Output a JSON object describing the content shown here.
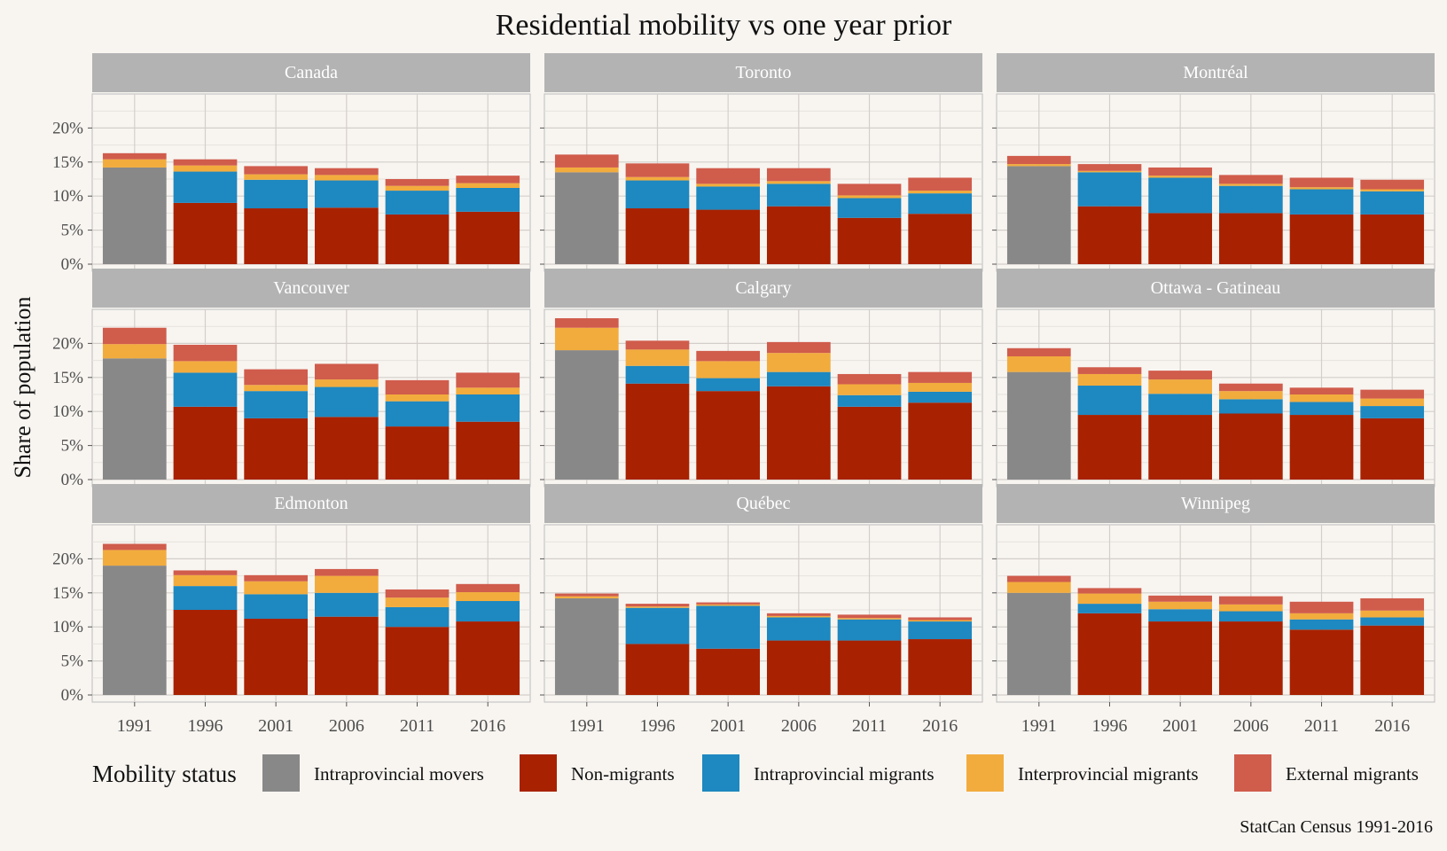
{
  "chart_data": {
    "type": "bar",
    "stacked": true,
    "title": "Residential mobility vs one year prior",
    "ylabel": "Share of population",
    "xlabel": "",
    "caption": "StatCan Census 1991-2016",
    "ylim": [
      0,
      0.25
    ],
    "yticks": [
      "0%",
      "5%",
      "10%",
      "15%",
      "20%"
    ],
    "ytick_values": [
      0,
      0.05,
      0.1,
      0.15,
      0.2
    ],
    "categories": [
      "1991",
      "1996",
      "2001",
      "2006",
      "2011",
      "2016"
    ],
    "grid": true,
    "legend": {
      "title": "Mobility status",
      "position": "bottom",
      "entries": [
        {
          "name": "Intraprovincial movers",
          "color": "#888888"
        },
        {
          "name": "Non-migrants",
          "color": "#a82100"
        },
        {
          "name": "Intraprovincial migrants",
          "color": "#1e88c0"
        },
        {
          "name": "Interprovincial migrants",
          "color": "#f2ac3d"
        },
        {
          "name": "External migrants",
          "color": "#d05c4c"
        }
      ]
    },
    "panels": [
      {
        "name": "Canada",
        "values": [
          [
            0.142,
            0,
            0,
            0.012,
            0.009
          ],
          [
            0,
            0.09,
            0.046,
            0.009,
            0.009
          ],
          [
            0,
            0.082,
            0.042,
            0.008,
            0.012
          ],
          [
            0,
            0.083,
            0.04,
            0.008,
            0.01
          ],
          [
            0,
            0.073,
            0.035,
            0.007,
            0.01
          ],
          [
            0,
            0.077,
            0.035,
            0.007,
            0.011
          ]
        ]
      },
      {
        "name": "Toronto",
        "values": [
          [
            0.135,
            0,
            0,
            0.007,
            0.019
          ],
          [
            0,
            0.082,
            0.041,
            0.005,
            0.02
          ],
          [
            0,
            0.08,
            0.034,
            0.004,
            0.023
          ],
          [
            0,
            0.085,
            0.033,
            0.004,
            0.019
          ],
          [
            0,
            0.068,
            0.029,
            0.004,
            0.017
          ],
          [
            0,
            0.074,
            0.03,
            0.004,
            0.019
          ]
        ]
      },
      {
        "name": "Montréal",
        "values": [
          [
            0.144,
            0,
            0,
            0.003,
            0.012
          ],
          [
            0,
            0.085,
            0.05,
            0.002,
            0.01
          ],
          [
            0,
            0.075,
            0.052,
            0.003,
            0.012
          ],
          [
            0,
            0.075,
            0.04,
            0.003,
            0.013
          ],
          [
            0,
            0.073,
            0.037,
            0.003,
            0.014
          ],
          [
            0,
            0.073,
            0.034,
            0.003,
            0.014
          ]
        ]
      },
      {
        "name": "Vancouver",
        "values": [
          [
            0.178,
            0,
            0,
            0.021,
            0.024
          ],
          [
            0,
            0.107,
            0.05,
            0.017,
            0.024
          ],
          [
            0,
            0.09,
            0.04,
            0.009,
            0.023
          ],
          [
            0,
            0.092,
            0.044,
            0.011,
            0.023
          ],
          [
            0,
            0.078,
            0.037,
            0.01,
            0.021
          ],
          [
            0,
            0.085,
            0.04,
            0.01,
            0.022
          ]
        ]
      },
      {
        "name": "Calgary",
        "values": [
          [
            0.19,
            0,
            0,
            0.033,
            0.014
          ],
          [
            0,
            0.141,
            0.026,
            0.024,
            0.013
          ],
          [
            0,
            0.13,
            0.019,
            0.025,
            0.015
          ],
          [
            0,
            0.137,
            0.021,
            0.028,
            0.016
          ],
          [
            0,
            0.107,
            0.017,
            0.016,
            0.015
          ],
          [
            0,
            0.113,
            0.016,
            0.013,
            0.016
          ]
        ]
      },
      {
        "name": "Ottawa - Gatineau",
        "values": [
          [
            0.158,
            0,
            0,
            0.023,
            0.012
          ],
          [
            0,
            0.095,
            0.043,
            0.017,
            0.01
          ],
          [
            0,
            0.095,
            0.031,
            0.021,
            0.013
          ],
          [
            0,
            0.097,
            0.021,
            0.012,
            0.011
          ],
          [
            0,
            0.095,
            0.019,
            0.011,
            0.01
          ],
          [
            0,
            0.09,
            0.018,
            0.011,
            0.013
          ]
        ]
      },
      {
        "name": "Edmonton",
        "values": [
          [
            0.19,
            0,
            0,
            0.023,
            0.009
          ],
          [
            0,
            0.125,
            0.035,
            0.016,
            0.007
          ],
          [
            0,
            0.112,
            0.036,
            0.019,
            0.009
          ],
          [
            0,
            0.115,
            0.035,
            0.025,
            0.01
          ],
          [
            0,
            0.1,
            0.029,
            0.014,
            0.012
          ],
          [
            0,
            0.108,
            0.03,
            0.013,
            0.012
          ]
        ]
      },
      {
        "name": "Québec",
        "values": [
          [
            0.142,
            0,
            0,
            0.003,
            0.004
          ],
          [
            0,
            0.075,
            0.053,
            0.002,
            0.004
          ],
          [
            0,
            0.068,
            0.063,
            0.002,
            0.003
          ],
          [
            0,
            0.08,
            0.034,
            0.002,
            0.004
          ],
          [
            0,
            0.08,
            0.031,
            0.002,
            0.005
          ],
          [
            0,
            0.082,
            0.026,
            0.002,
            0.004
          ]
        ]
      },
      {
        "name": "Winnipeg",
        "values": [
          [
            0.15,
            0,
            0,
            0.016,
            0.009
          ],
          [
            0,
            0.12,
            0.014,
            0.015,
            0.008
          ],
          [
            0,
            0.108,
            0.018,
            0.011,
            0.009
          ],
          [
            0,
            0.108,
            0.015,
            0.01,
            0.012
          ],
          [
            0,
            0.096,
            0.015,
            0.009,
            0.017
          ],
          [
            0,
            0.102,
            0.012,
            0.01,
            0.018
          ]
        ]
      }
    ]
  }
}
